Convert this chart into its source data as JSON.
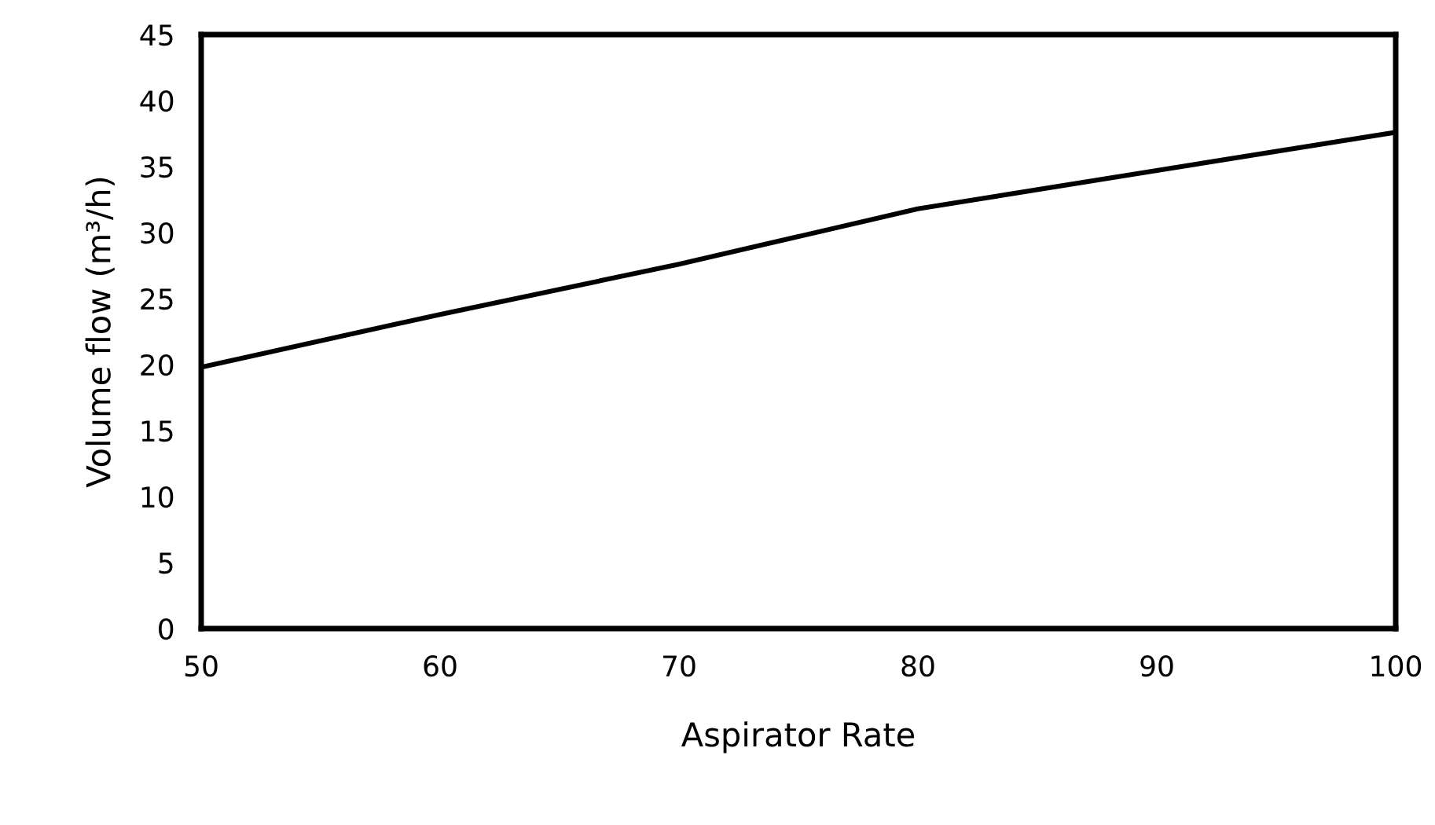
{
  "chart_data": {
    "type": "line",
    "xlabel": "Aspirator Rate",
    "ylabel": "Volume flow (m³/h)",
    "x": [
      50,
      60,
      70,
      75,
      80,
      90,
      100
    ],
    "series": [
      {
        "color": "#000000",
        "values": [
          19.8,
          23.8,
          27.6,
          29.7,
          31.8,
          34.7,
          37.6
        ]
      }
    ],
    "xlim": [
      50,
      100
    ],
    "xticks": [
      50,
      60,
      70,
      80,
      90,
      100
    ],
    "ylim": [
      0,
      45
    ],
    "yticks": [
      0,
      5,
      10,
      15,
      20,
      25,
      30,
      35,
      40,
      45
    ],
    "grid": false,
    "legend": false,
    "marker": "none",
    "line_style": "solid"
  }
}
